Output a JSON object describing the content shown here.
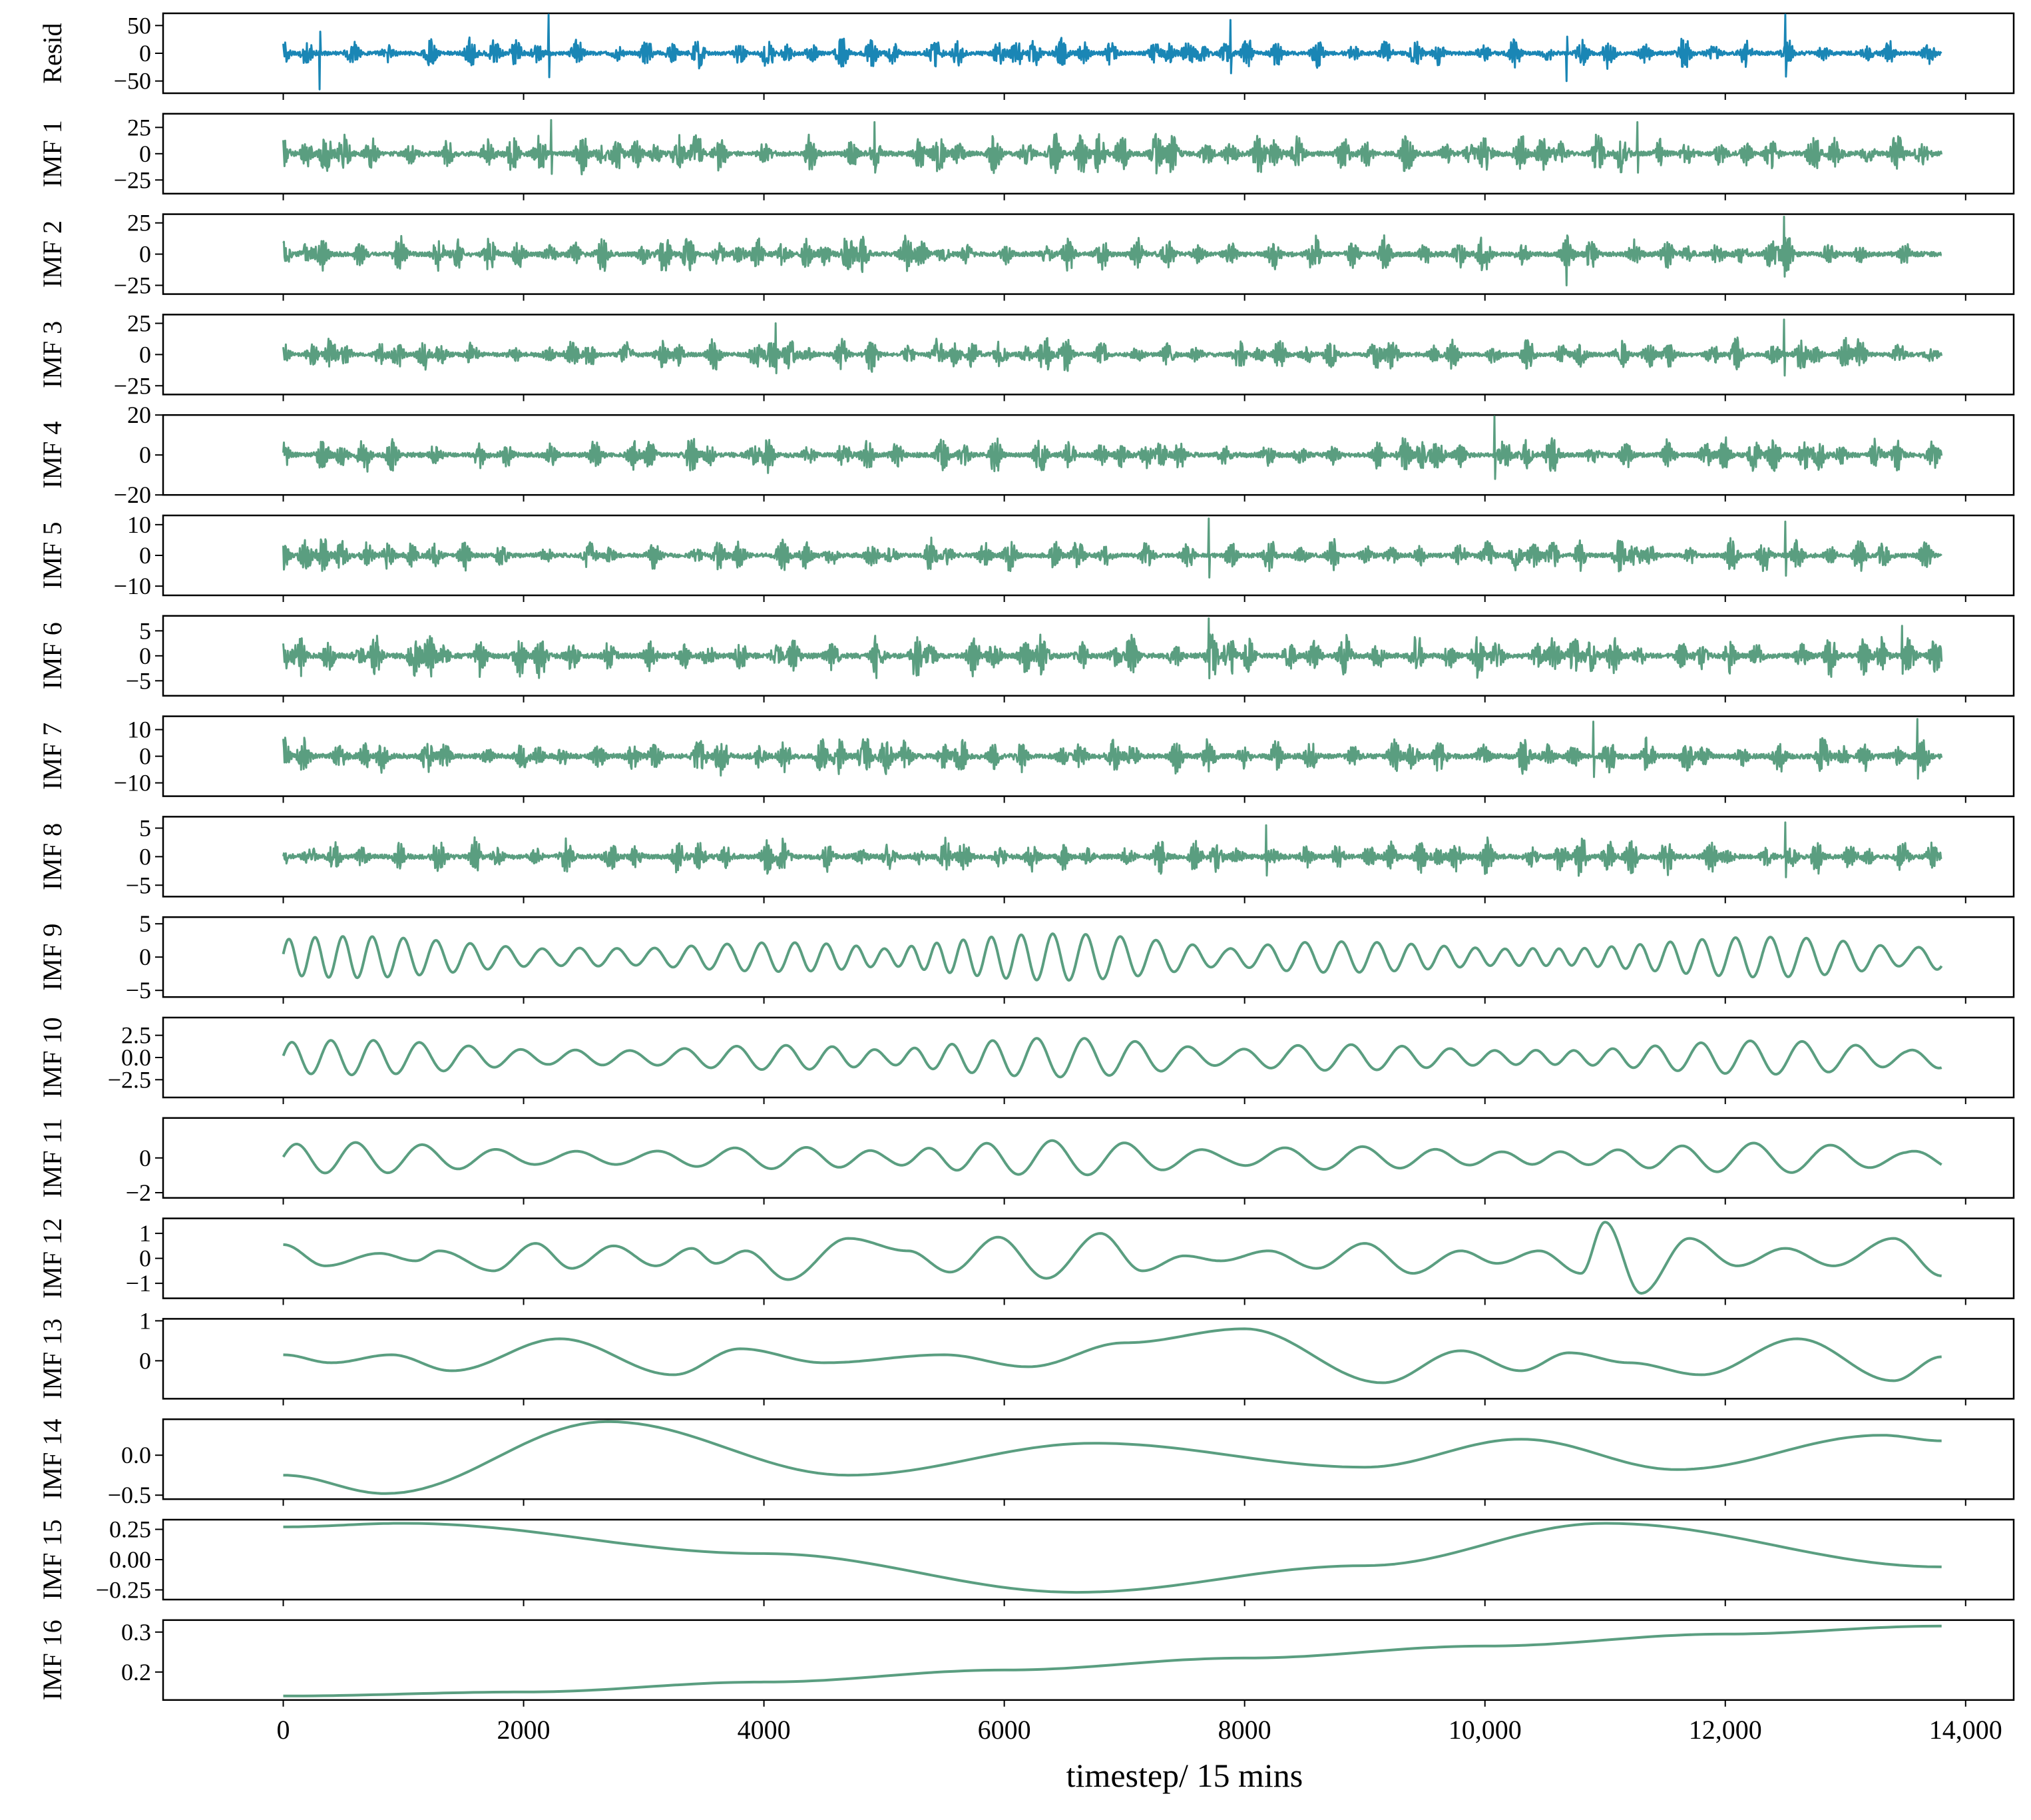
{
  "colors": {
    "resid_line": "#1a86b5",
    "imf_line": "#5a9e80",
    "axis": "#000000"
  },
  "chart_data": {
    "type": "line",
    "layout": "stacked-subplots",
    "shared_x": {
      "xlabel": "timestep/ 15 mins",
      "xlim": [
        -1000,
        14400
      ],
      "ticks": [
        0,
        2000,
        4000,
        6000,
        8000,
        10000,
        12000,
        14000
      ],
      "tick_labels": [
        "0",
        "2000",
        "4000",
        "6000",
        "8000",
        "10,000",
        "12,000",
        "14,000"
      ],
      "data_range": [
        0,
        13800
      ]
    },
    "panels": [
      {
        "ylabel": "Resid",
        "ylim": [
          -72,
          72
        ],
        "yticks": [
          50,
          0,
          -50
        ],
        "ytick_labels": [
          "50",
          "0",
          "−50"
        ],
        "kind": "noise",
        "amp": 30,
        "color": "resid_line",
        "spikes": [
          [
            2210,
            72
          ],
          [
            300,
            -65
          ],
          [
            12500,
            70
          ],
          [
            7880,
            60
          ],
          [
            10680,
            -50
          ]
        ]
      },
      {
        "ylabel": "IMF 1",
        "ylim": [
          -38,
          38
        ],
        "yticks": [
          25,
          0,
          -25
        ],
        "ytick_labels": [
          "25",
          "0",
          "−25"
        ],
        "kind": "noise",
        "amp": 20,
        "color": "imf_line",
        "spikes": [
          [
            2230,
            32
          ],
          [
            4920,
            30
          ],
          [
            11270,
            30
          ]
        ]
      },
      {
        "ylabel": "IMF 2",
        "ylim": [
          -32,
          32
        ],
        "yticks": [
          25,
          0,
          -25
        ],
        "ytick_labels": [
          "25",
          "0",
          "−25"
        ],
        "kind": "noise",
        "amp": 16,
        "color": "imf_line",
        "spikes": [
          [
            12490,
            30
          ],
          [
            10680,
            -25
          ]
        ]
      },
      {
        "ylabel": "IMF 3",
        "ylim": [
          -32,
          32
        ],
        "yticks": [
          25,
          0,
          -25
        ],
        "ytick_labels": [
          "25",
          "0",
          "−25"
        ],
        "kind": "noise",
        "amp": 14,
        "color": "imf_line",
        "spikes": [
          [
            12490,
            28
          ],
          [
            4100,
            25
          ]
        ]
      },
      {
        "ylabel": "IMF 4",
        "ylim": [
          -20,
          20
        ],
        "yticks": [
          20,
          0,
          -20
        ],
        "ytick_labels": [
          "20",
          "0",
          "−20"
        ],
        "kind": "noise",
        "amp": 10,
        "color": "imf_line",
        "spikes": [
          [
            10080,
            20
          ]
        ]
      },
      {
        "ylabel": "IMF 5",
        "ylim": [
          -13,
          13
        ],
        "yticks": [
          10,
          0,
          -10
        ],
        "ytick_labels": [
          "10",
          "0",
          "−10"
        ],
        "kind": "noise",
        "amp": 6,
        "color": "imf_line",
        "spikes": [
          [
            7700,
            12
          ],
          [
            12500,
            11
          ]
        ]
      },
      {
        "ylabel": "IMF 6",
        "ylim": [
          -8,
          8
        ],
        "yticks": [
          5,
          0,
          -5
        ],
        "ytick_labels": [
          "5",
          "0",
          "−5"
        ],
        "kind": "noise",
        "amp": 4.5,
        "color": "imf_line",
        "spikes": [
          [
            7700,
            7.5
          ],
          [
            13470,
            6
          ]
        ]
      },
      {
        "ylabel": "IMF 7",
        "ylim": [
          -15,
          15
        ],
        "yticks": [
          10,
          0,
          -10
        ],
        "ytick_labels": [
          "10",
          "0",
          "−10"
        ],
        "kind": "noise",
        "amp": 8,
        "color": "imf_line",
        "spikes": [
          [
            13600,
            14
          ],
          [
            10900,
            13
          ]
        ]
      },
      {
        "ylabel": "IMF 8",
        "ylim": [
          -7,
          7
        ],
        "yticks": [
          5,
          0,
          -5
        ],
        "ytick_labels": [
          "5",
          "0",
          "−5"
        ],
        "kind": "noise",
        "amp": 3.5,
        "color": "imf_line",
        "spikes": [
          [
            12500,
            6
          ],
          [
            8180,
            5.5
          ]
        ]
      },
      {
        "ylabel": "IMF 9",
        "ylim": [
          -6,
          6
        ],
        "yticks": [
          5,
          0,
          -5
        ],
        "ytick_labels": [
          "5",
          "0",
          "−5"
        ],
        "kind": "wave",
        "amp": 3.5,
        "period": 260,
        "color": "imf_line"
      },
      {
        "ylabel": "IMF 10",
        "ylim": [
          -4.5,
          4.5
        ],
        "yticks": [
          2.5,
          0.0,
          -2.5
        ],
        "ytick_labels": [
          "2.5",
          "0.0",
          "−2.5"
        ],
        "kind": "wave",
        "amp": 2.2,
        "period": 380,
        "color": "imf_line"
      },
      {
        "ylabel": "IMF 11",
        "ylim": [
          -2.3,
          2.3
        ],
        "yticks": [
          0,
          -2
        ],
        "ytick_labels": [
          "0",
          "−2"
        ],
        "kind": "wave",
        "amp": 1.0,
        "period": 560,
        "color": "imf_line"
      },
      {
        "ylabel": "IMF 12",
        "ylim": [
          -1.6,
          1.6
        ],
        "yticks": [
          1,
          0,
          -1
        ],
        "ytick_labels": [
          "1",
          "0",
          "−1"
        ],
        "kind": "points",
        "color": "imf_line",
        "x": [
          0,
          350,
          800,
          1100,
          1300,
          1750,
          2100,
          2400,
          2750,
          3100,
          3400,
          3600,
          3850,
          4200,
          4700,
          5200,
          5550,
          5950,
          6350,
          6800,
          7150,
          7500,
          7800,
          8200,
          8600,
          9000,
          9400,
          9800,
          10100,
          10450,
          10800,
          11000,
          11300,
          11700,
          12100,
          12500,
          12900,
          13400,
          13800
        ],
        "y": [
          0.55,
          -0.3,
          0.2,
          -0.1,
          0.3,
          -0.5,
          0.6,
          -0.4,
          0.5,
          -0.3,
          0.4,
          -0.2,
          0.3,
          -0.85,
          0.8,
          0.3,
          -0.55,
          0.85,
          -0.8,
          1.0,
          -0.5,
          0.1,
          -0.1,
          0.3,
          -0.4,
          0.6,
          -0.6,
          0.3,
          -0.2,
          0.3,
          -0.6,
          1.45,
          -1.4,
          0.8,
          -0.3,
          0.4,
          -0.3,
          0.8,
          -0.7
        ]
      },
      {
        "ylabel": "IMF 13",
        "ylim": [
          -0.95,
          1.05
        ],
        "yticks": [
          1,
          0
        ],
        "ytick_labels": [
          "1",
          "0"
        ],
        "kind": "points",
        "color": "imf_line",
        "x": [
          0,
          400,
          900,
          1400,
          2300,
          3250,
          3800,
          4500,
          5500,
          6200,
          7000,
          8000,
          9150,
          9800,
          10300,
          10700,
          11200,
          11800,
          12600,
          13400,
          13800
        ],
        "y": [
          0.15,
          -0.05,
          0.15,
          -0.25,
          0.55,
          -0.35,
          0.3,
          -0.05,
          0.15,
          -0.15,
          0.45,
          0.8,
          -0.55,
          0.25,
          -0.25,
          0.2,
          -0.05,
          -0.35,
          0.55,
          -0.5,
          0.1
        ]
      },
      {
        "ylabel": "IMF 14",
        "ylim": [
          -0.55,
          0.45
        ],
        "yticks": [
          0.0,
          -0.5
        ],
        "ytick_labels": [
          "0.0",
          "−0.5"
        ],
        "kind": "points",
        "color": "imf_line",
        "x": [
          0,
          850,
          2700,
          4700,
          6750,
          9000,
          10300,
          11600,
          13300,
          13800
        ],
        "y": [
          -0.25,
          -0.48,
          0.42,
          -0.25,
          0.15,
          -0.15,
          0.2,
          -0.18,
          0.25,
          0.18
        ]
      },
      {
        "ylabel": "IMF 15",
        "ylim": [
          -0.33,
          0.33
        ],
        "yticks": [
          0.25,
          0.0,
          -0.25
        ],
        "ytick_labels": [
          "0.25",
          "0.00",
          "−0.25"
        ],
        "kind": "points",
        "color": "imf_line",
        "x": [
          0,
          1000,
          4000,
          6600,
          9000,
          11000,
          13800
        ],
        "y": [
          0.27,
          0.3,
          0.05,
          -0.27,
          -0.05,
          0.3,
          -0.06
        ]
      },
      {
        "ylabel": "IMF 16",
        "ylim": [
          0.13,
          0.33
        ],
        "yticks": [
          0.3,
          0.2
        ],
        "ytick_labels": [
          "0.3",
          "0.2"
        ],
        "kind": "points",
        "color": "imf_line",
        "x": [
          0,
          2000,
          4000,
          6000,
          8000,
          10000,
          12000,
          13800
        ],
        "y": [
          0.14,
          0.15,
          0.175,
          0.205,
          0.235,
          0.265,
          0.295,
          0.315
        ]
      }
    ]
  }
}
